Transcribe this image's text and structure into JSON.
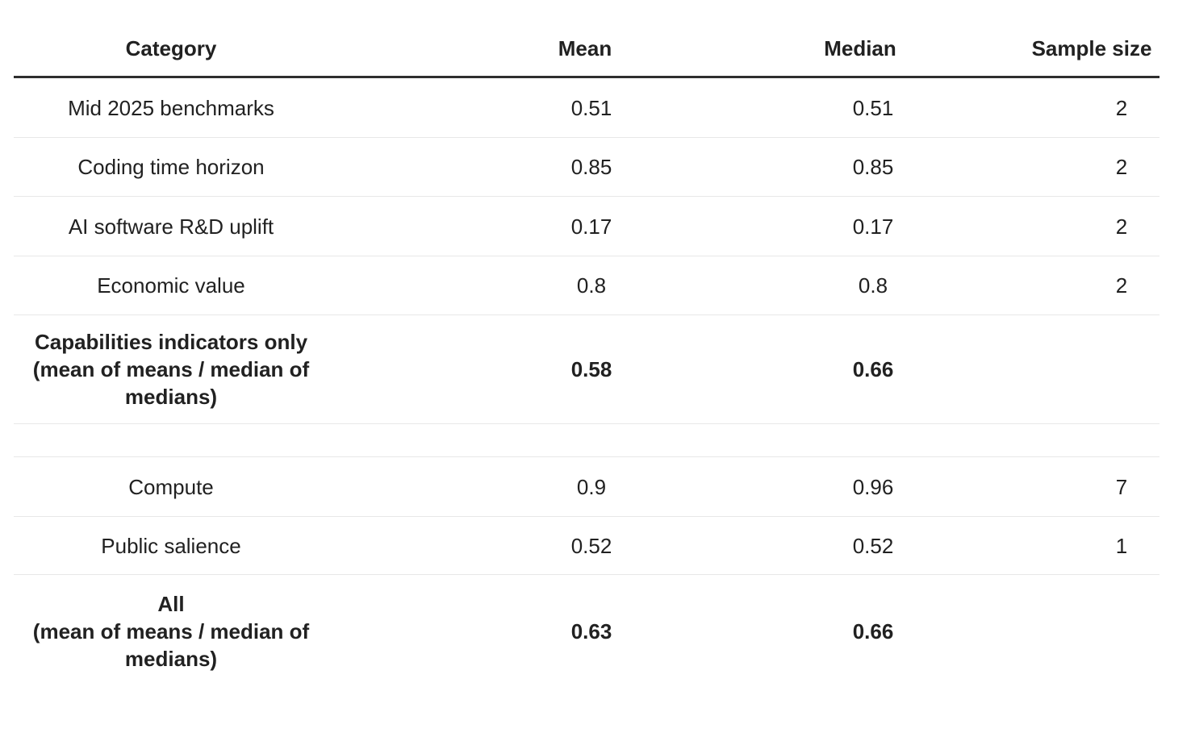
{
  "table": {
    "header": [
      "Category",
      "Mean",
      "Median",
      "Sample size"
    ],
    "rows": [
      {
        "cells": [
          "Mid 2025 benchmarks",
          "0.51",
          "0.51",
          "2"
        ]
      },
      {
        "cells": [
          "Coding time horizon",
          "0.85",
          "0.85",
          "2"
        ]
      },
      {
        "cells": [
          "AI software R&D uplift",
          "0.17",
          "0.17",
          "2"
        ]
      },
      {
        "cells": [
          "Economic value",
          "0.8",
          "0.8",
          "2"
        ]
      },
      {
        "cells": [
          "Capabilities indicators only\n(mean of means / median of medians)",
          "0.58",
          "0.66",
          ""
        ]
      },
      {
        "cells": [
          "",
          "",
          "",
          ""
        ]
      },
      {
        "cells": [
          "Compute",
          "0.9",
          "0.96",
          "7"
        ]
      },
      {
        "cells": [
          "Public salience",
          "0.52",
          "0.52",
          "1"
        ]
      },
      {
        "cells": [
          "All\n(mean of means / median of medians)",
          "0.63",
          "0.66",
          ""
        ]
      }
    ],
    "colors": {
      "background": "#ffffff",
      "text": "#212121",
      "header_rule": "#2e2e2e",
      "row_rule": "#e8e8e8"
    }
  },
  "chart_data": {
    "type": "table",
    "title": "",
    "columns": [
      "Category",
      "Mean",
      "Median",
      "Sample size"
    ],
    "rows": [
      [
        "Mid 2025 benchmarks",
        0.51,
        0.51,
        2
      ],
      [
        "Coding time horizon",
        0.85,
        0.85,
        2
      ],
      [
        "AI software R&D uplift",
        0.17,
        0.17,
        2
      ],
      [
        "Economic value",
        0.8,
        0.8,
        2
      ],
      [
        "Capabilities indicators only (mean of means / median of medians)",
        0.58,
        0.66,
        null
      ],
      [
        "Compute",
        0.9,
        0.96,
        7
      ],
      [
        "Public salience",
        0.52,
        0.52,
        1
      ],
      [
        "All (mean of means / median of medians)",
        0.63,
        0.66,
        null
      ]
    ],
    "layout": {
      "grid": "horizontal rules only",
      "header_style": "bold with thick dark bottom rule",
      "bold_summary_rows": [
        4,
        7
      ],
      "alignment": "center"
    }
  }
}
